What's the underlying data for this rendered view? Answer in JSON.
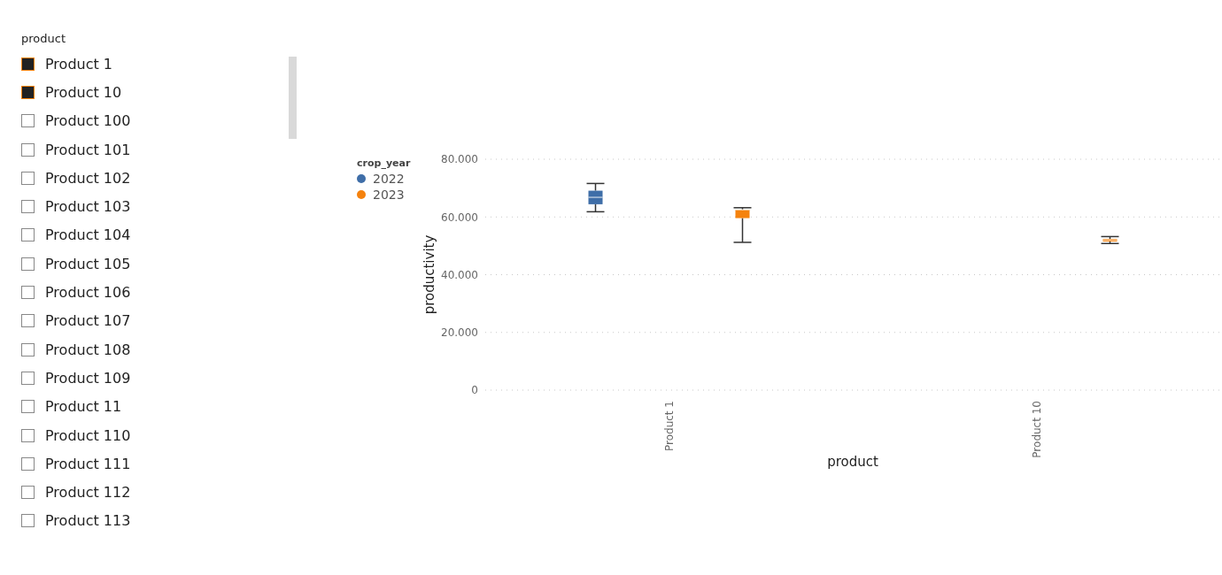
{
  "chart_data": [
    {
      "type": "other",
      "title": "product",
      "annotations": [
        "Product 1",
        "Product 10",
        "Product 100",
        "Product 101",
        "Product 102",
        "Product 103",
        "Product 104",
        "Product 105",
        "Product 106",
        "Product 107",
        "Product 108",
        "Product 109",
        "Product 11",
        "Product 110",
        "Product 111",
        "Product 112",
        "Product 113"
      ]
    },
    {
      "type": "box",
      "xlabel": "product",
      "ylabel": "productivity",
      "legend_title": "crop_year",
      "legend": "top left",
      "grid": "y",
      "categories": [
        "Product 1",
        "Product 10"
      ],
      "ylim": [
        0,
        80000
      ],
      "yticks": [
        0,
        {
          "value": 20000,
          "label": "20.000"
        },
        {
          "value": 40000,
          "label": "40.000"
        },
        {
          "value": 60000,
          "label": "60.000"
        },
        {
          "value": 80000,
          "label": "80.000"
        }
      ],
      "series": [
        {
          "name": "2022",
          "color": "#3f6ea8",
          "boxes": [
            {
              "low": 61800,
              "q1": 64400,
              "median": 66800,
              "q3": 69100,
              "high": 71600
            },
            null
          ]
        },
        {
          "name": "2023",
          "color": "#f5820d",
          "boxes": [
            {
              "low": 51200,
              "q1": 59600,
              "median": 62500,
              "q3": 62500,
              "high": 63200
            },
            {
              "low": 50800,
              "q1": 51500,
              "median": 52000,
              "q3": 52400,
              "high": 53200
            }
          ]
        }
      ]
    }
  ]
}
